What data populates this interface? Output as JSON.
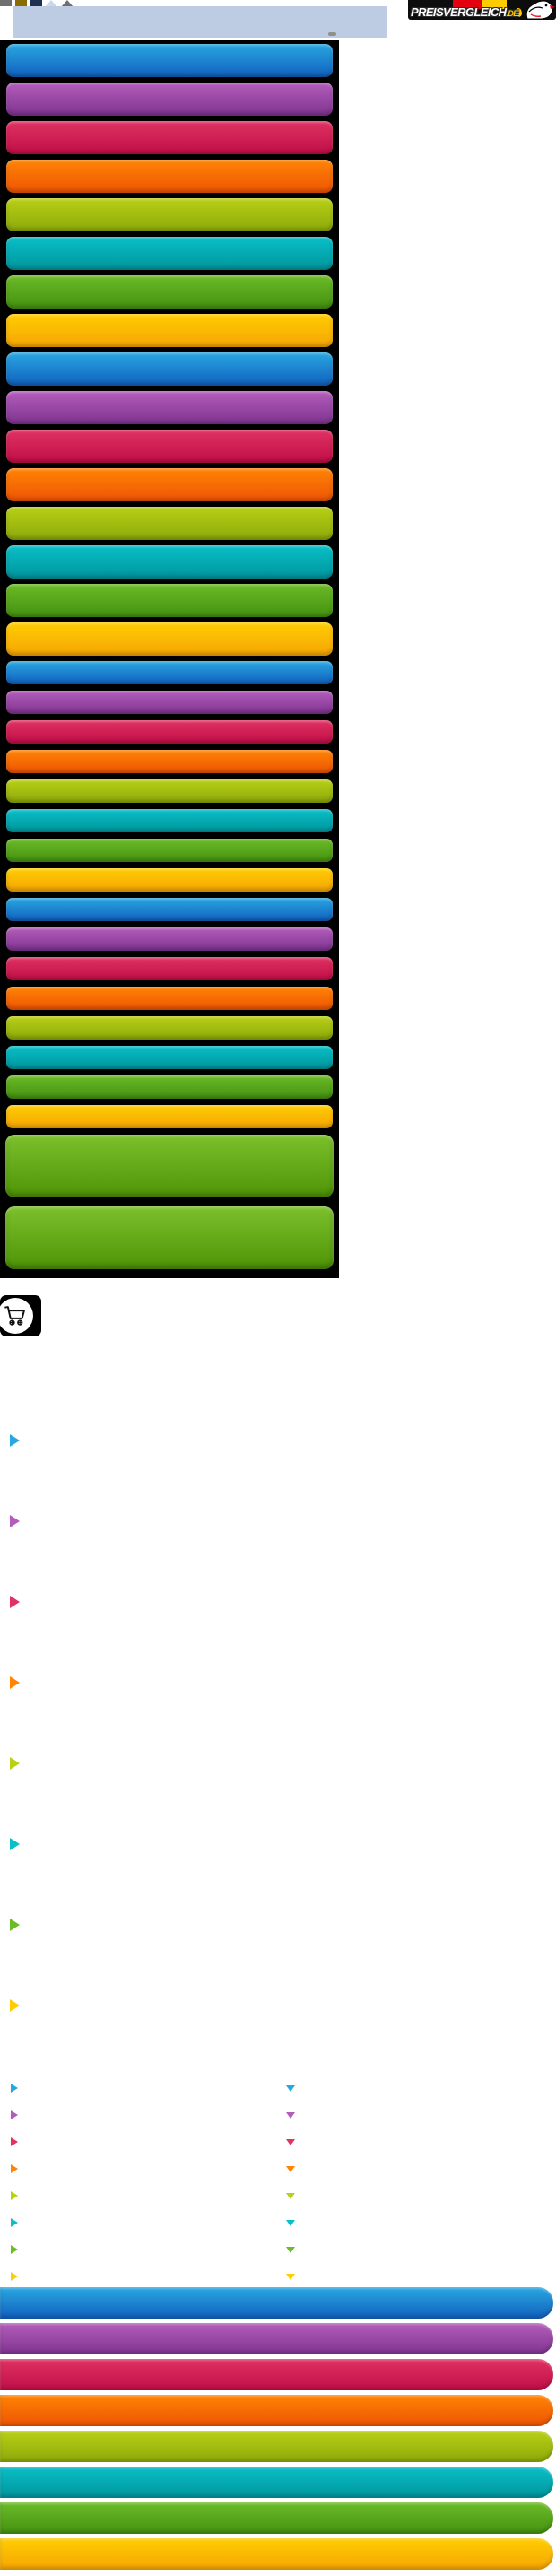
{
  "header": {
    "panel_bg": "#BDCCE3",
    "dash_color": "#8F8F8F",
    "mini_icons": [
      {
        "name": "gray-square-icon",
        "shape": "square",
        "color": "#707070",
        "x": 0,
        "w": 13
      },
      {
        "name": "olive-square-icon",
        "shape": "square",
        "color": "#8A6D00",
        "x": 17,
        "w": 13
      },
      {
        "name": "navy-square-icon",
        "shape": "square",
        "color": "#1E3050",
        "x": 33,
        "w": 14
      },
      {
        "name": "light-chevron-icon",
        "shape": "triangle",
        "color": "#C9D9ED",
        "x": 50,
        "w": 14
      },
      {
        "name": "gray-triangle-icon",
        "shape": "triangle",
        "color": "#6F6F6F",
        "x": 68,
        "w": 15
      }
    ],
    "logo": {
      "text": "PREISVERGLEICH",
      "suffix": ".DE",
      "bg": "#0D0D0D",
      "flag_red": "#E3000F",
      "flag_gold": "#FFCC00",
      "text_color": "#FFFFFF"
    }
  },
  "palette": {
    "blue": {
      "top": "#29A7E1",
      "bottom": "#1160BE"
    },
    "purple": {
      "top": "#B35DBB",
      "bottom": "#7F3390"
    },
    "crimson": {
      "top": "#E03263",
      "bottom": "#C00E47"
    },
    "orange": {
      "top": "#FF8404",
      "bottom": "#EE5404"
    },
    "lime": {
      "top": "#B9D016",
      "bottom": "#8CA90A"
    },
    "teal": {
      "top": "#0ABFC8",
      "bottom": "#00959C"
    },
    "green": {
      "top": "#6CBB28",
      "bottom": "#449110"
    },
    "amber": {
      "top": "#FFCD02",
      "bottom": "#F6A504"
    }
  },
  "category_panel": {
    "bg": "#000000",
    "large_bars": [
      "blue",
      "purple",
      "crimson",
      "orange",
      "lime",
      "teal",
      "green",
      "amber",
      "blue",
      "purple",
      "crimson",
      "orange",
      "lime",
      "teal",
      "green",
      "amber"
    ],
    "small_bars": [
      "blue",
      "purple",
      "crimson",
      "orange",
      "lime",
      "teal",
      "green",
      "amber",
      "blue",
      "purple",
      "crimson",
      "orange",
      "lime",
      "teal",
      "green",
      "amber"
    ],
    "feature_bars": [
      {
        "top": "#7CC02C",
        "bottom": "#4E9406"
      },
      {
        "top": "#7CC02C",
        "bottom": "#4E9406"
      }
    ]
  },
  "cart": {
    "bg": "#000000",
    "circle": "#FFFFFF",
    "glyph_color": "#111111"
  },
  "bullet_links": {
    "colors": [
      "blue",
      "purple",
      "crimson",
      "orange",
      "lime",
      "teal",
      "green",
      "amber"
    ]
  },
  "expandable_links": {
    "colors": [
      "blue",
      "purple",
      "crimson",
      "orange",
      "lime",
      "teal",
      "green",
      "amber"
    ]
  },
  "footer_bars": {
    "colors": [
      "blue",
      "purple",
      "crimson",
      "orange",
      "lime",
      "teal",
      "green",
      "amber"
    ]
  }
}
